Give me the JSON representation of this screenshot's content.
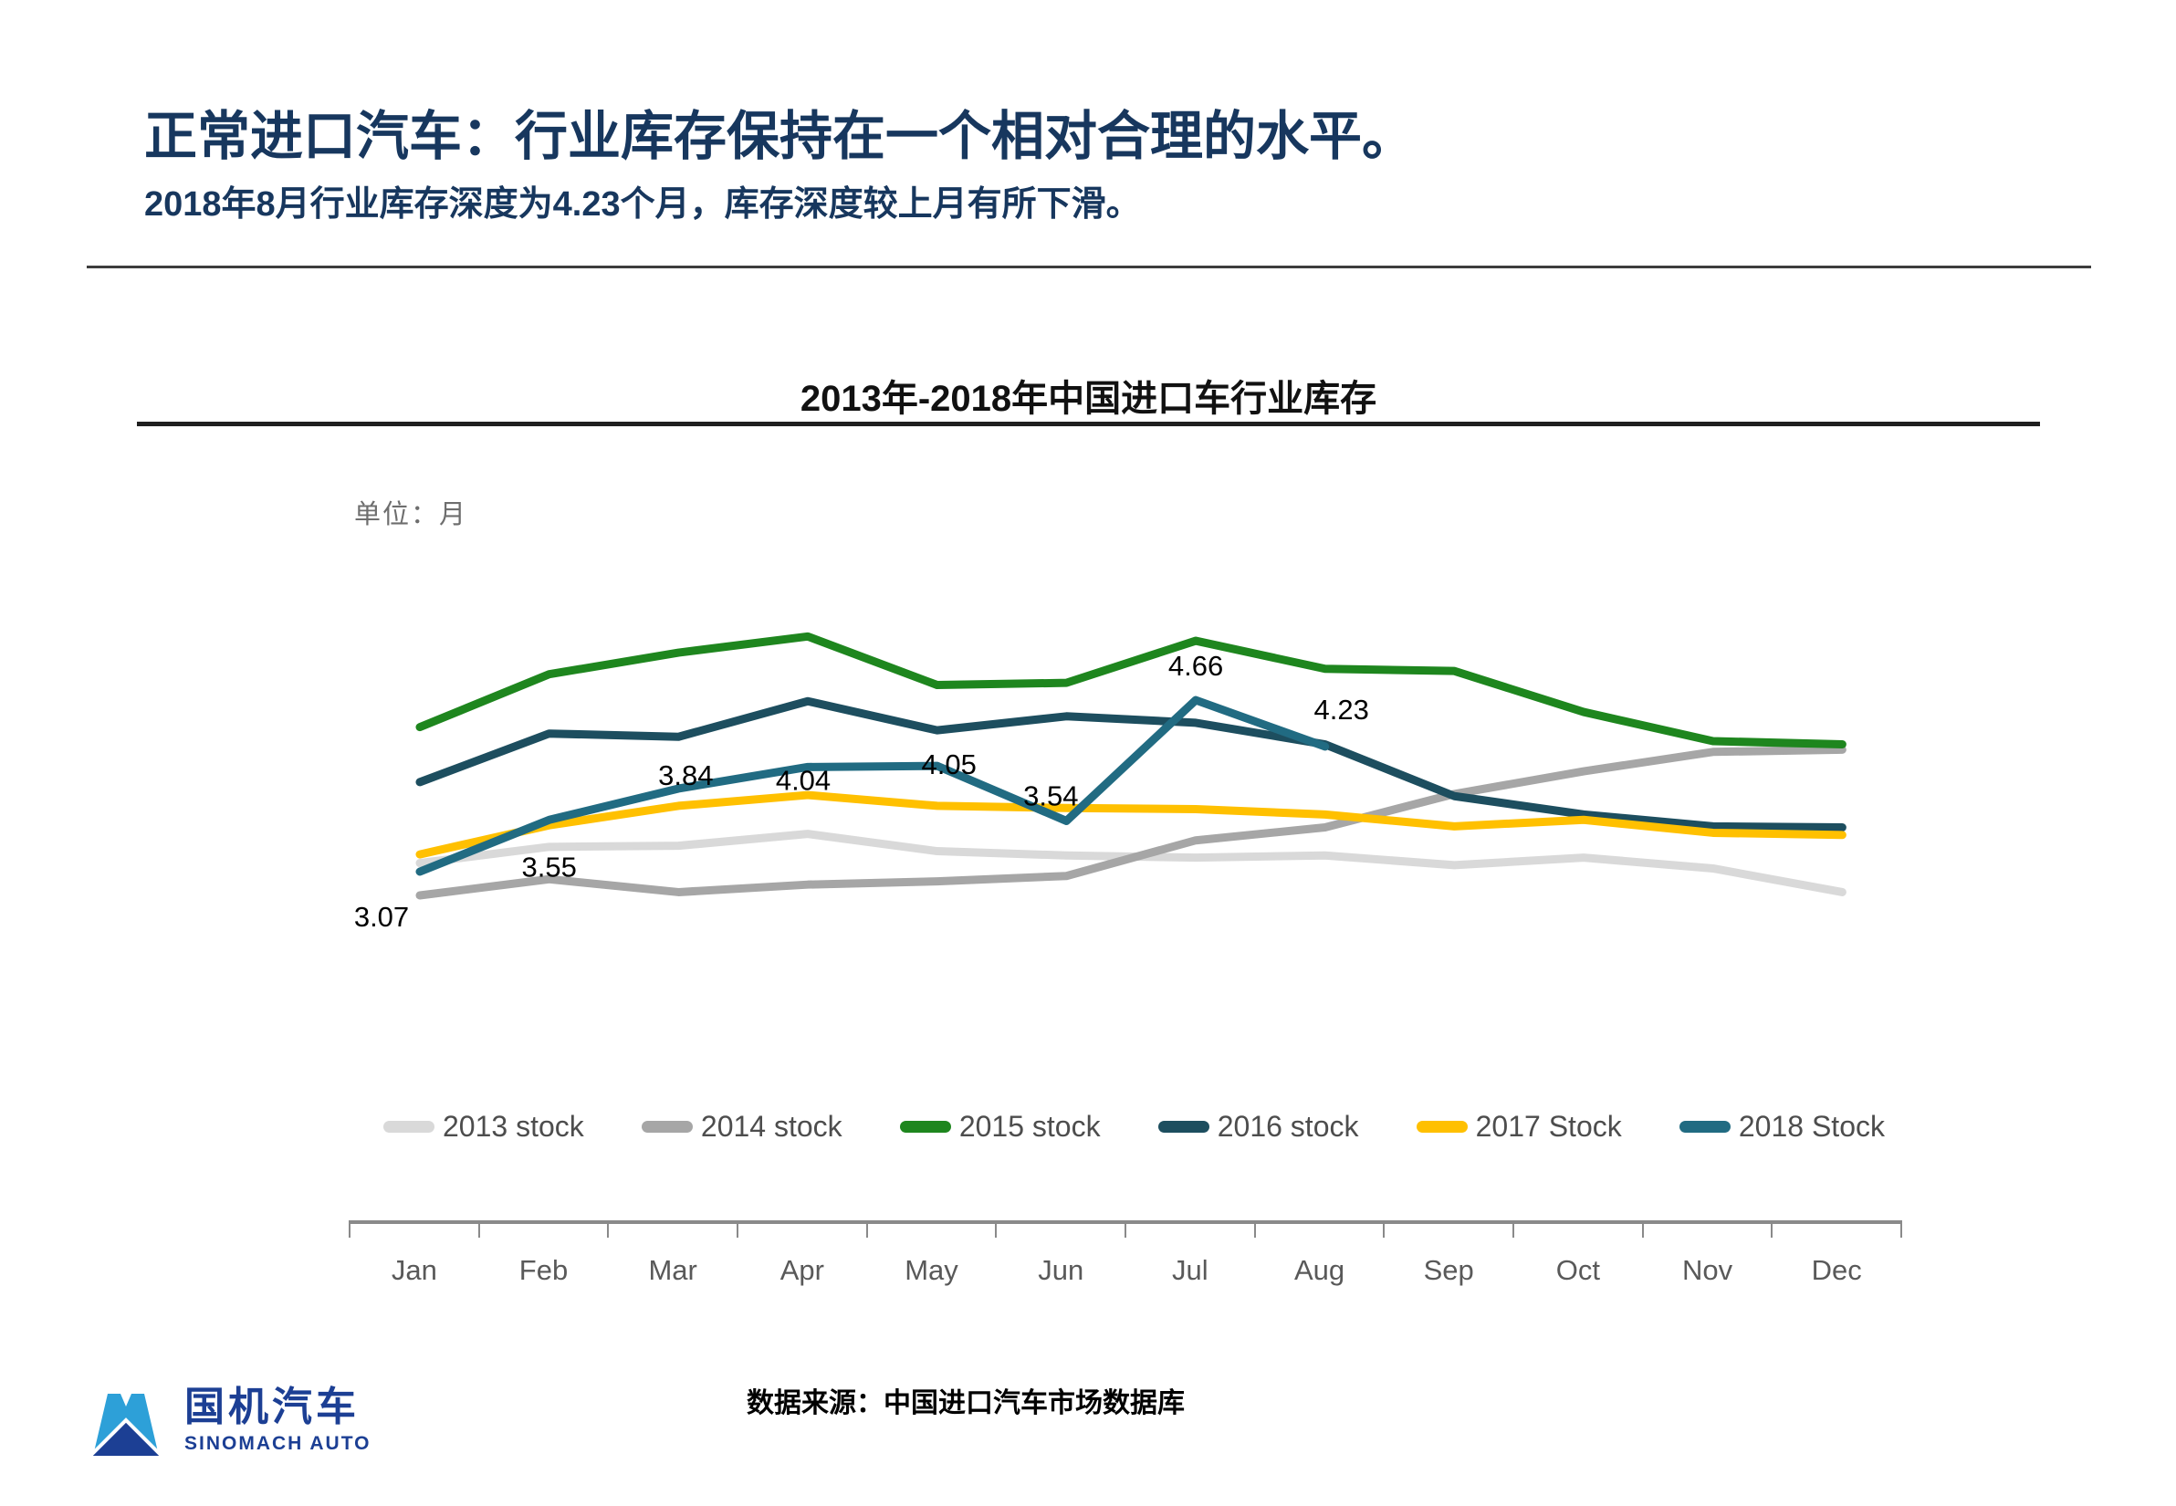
{
  "header": {
    "title": "正常进口汽车：行业库存保持在一个相对合理的水平。",
    "subtitle": "2018年8月行业库存深度为4.23个月，库存深度较上月有所下滑。"
  },
  "chart": {
    "unit_label": "单位：月"
  },
  "chart_data": {
    "type": "line",
    "title": "2013年-2018年中国进口车行业库存",
    "unit": "月",
    "categories": [
      "Jan",
      "Feb",
      "Mar",
      "Apr",
      "May",
      "Jun",
      "Jul",
      "Aug",
      "Sep",
      "Oct",
      "Nov",
      "Dec"
    ],
    "series": [
      {
        "name": "2013 stock",
        "color": "#d9d9d9",
        "values": [
          3.15,
          3.3,
          3.31,
          3.42,
          3.26,
          3.22,
          3.2,
          3.22,
          3.13,
          3.2,
          3.1,
          2.88
        ]
      },
      {
        "name": "2014 stock",
        "color": "#a6a6a6",
        "values": [
          2.85,
          3.0,
          2.88,
          2.95,
          2.98,
          3.03,
          3.36,
          3.48,
          3.79,
          4.0,
          4.18,
          4.2
        ]
      },
      {
        "name": "2015 stock",
        "color": "#1e861e",
        "values": [
          4.41,
          4.9,
          5.1,
          5.25,
          4.8,
          4.82,
          5.21,
          4.95,
          4.93,
          4.55,
          4.28,
          4.25
        ]
      },
      {
        "name": "2016 stock",
        "color": "#1d4e5f",
        "values": [
          3.9,
          4.35,
          4.32,
          4.65,
          4.38,
          4.51,
          4.45,
          4.25,
          3.77,
          3.6,
          3.49,
          3.48
        ]
      },
      {
        "name": "2017 Stock",
        "color": "#ffc000",
        "values": [
          3.23,
          3.5,
          3.68,
          3.78,
          3.68,
          3.66,
          3.65,
          3.6,
          3.49,
          3.55,
          3.43,
          3.41
        ]
      },
      {
        "name": "2018 Stock",
        "color": "#216b82",
        "labeled": true,
        "values": [
          3.07,
          3.55,
          3.84,
          4.04,
          4.05,
          3.54,
          4.66,
          4.23
        ]
      }
    ],
    "data_labels_2018": [
      "3.07",
      "3.55",
      "3.84",
      "4.04",
      "4.05",
      "3.54",
      "4.66",
      "4.23"
    ],
    "legend_position": "bottom",
    "grid": false,
    "value_axis_visible": false
  },
  "footer": {
    "source": "数据来源：中国进口汽车市场数据库"
  },
  "logo": {
    "name_cn": "国机汽车",
    "name_en": "SINOMACH AUTO"
  }
}
